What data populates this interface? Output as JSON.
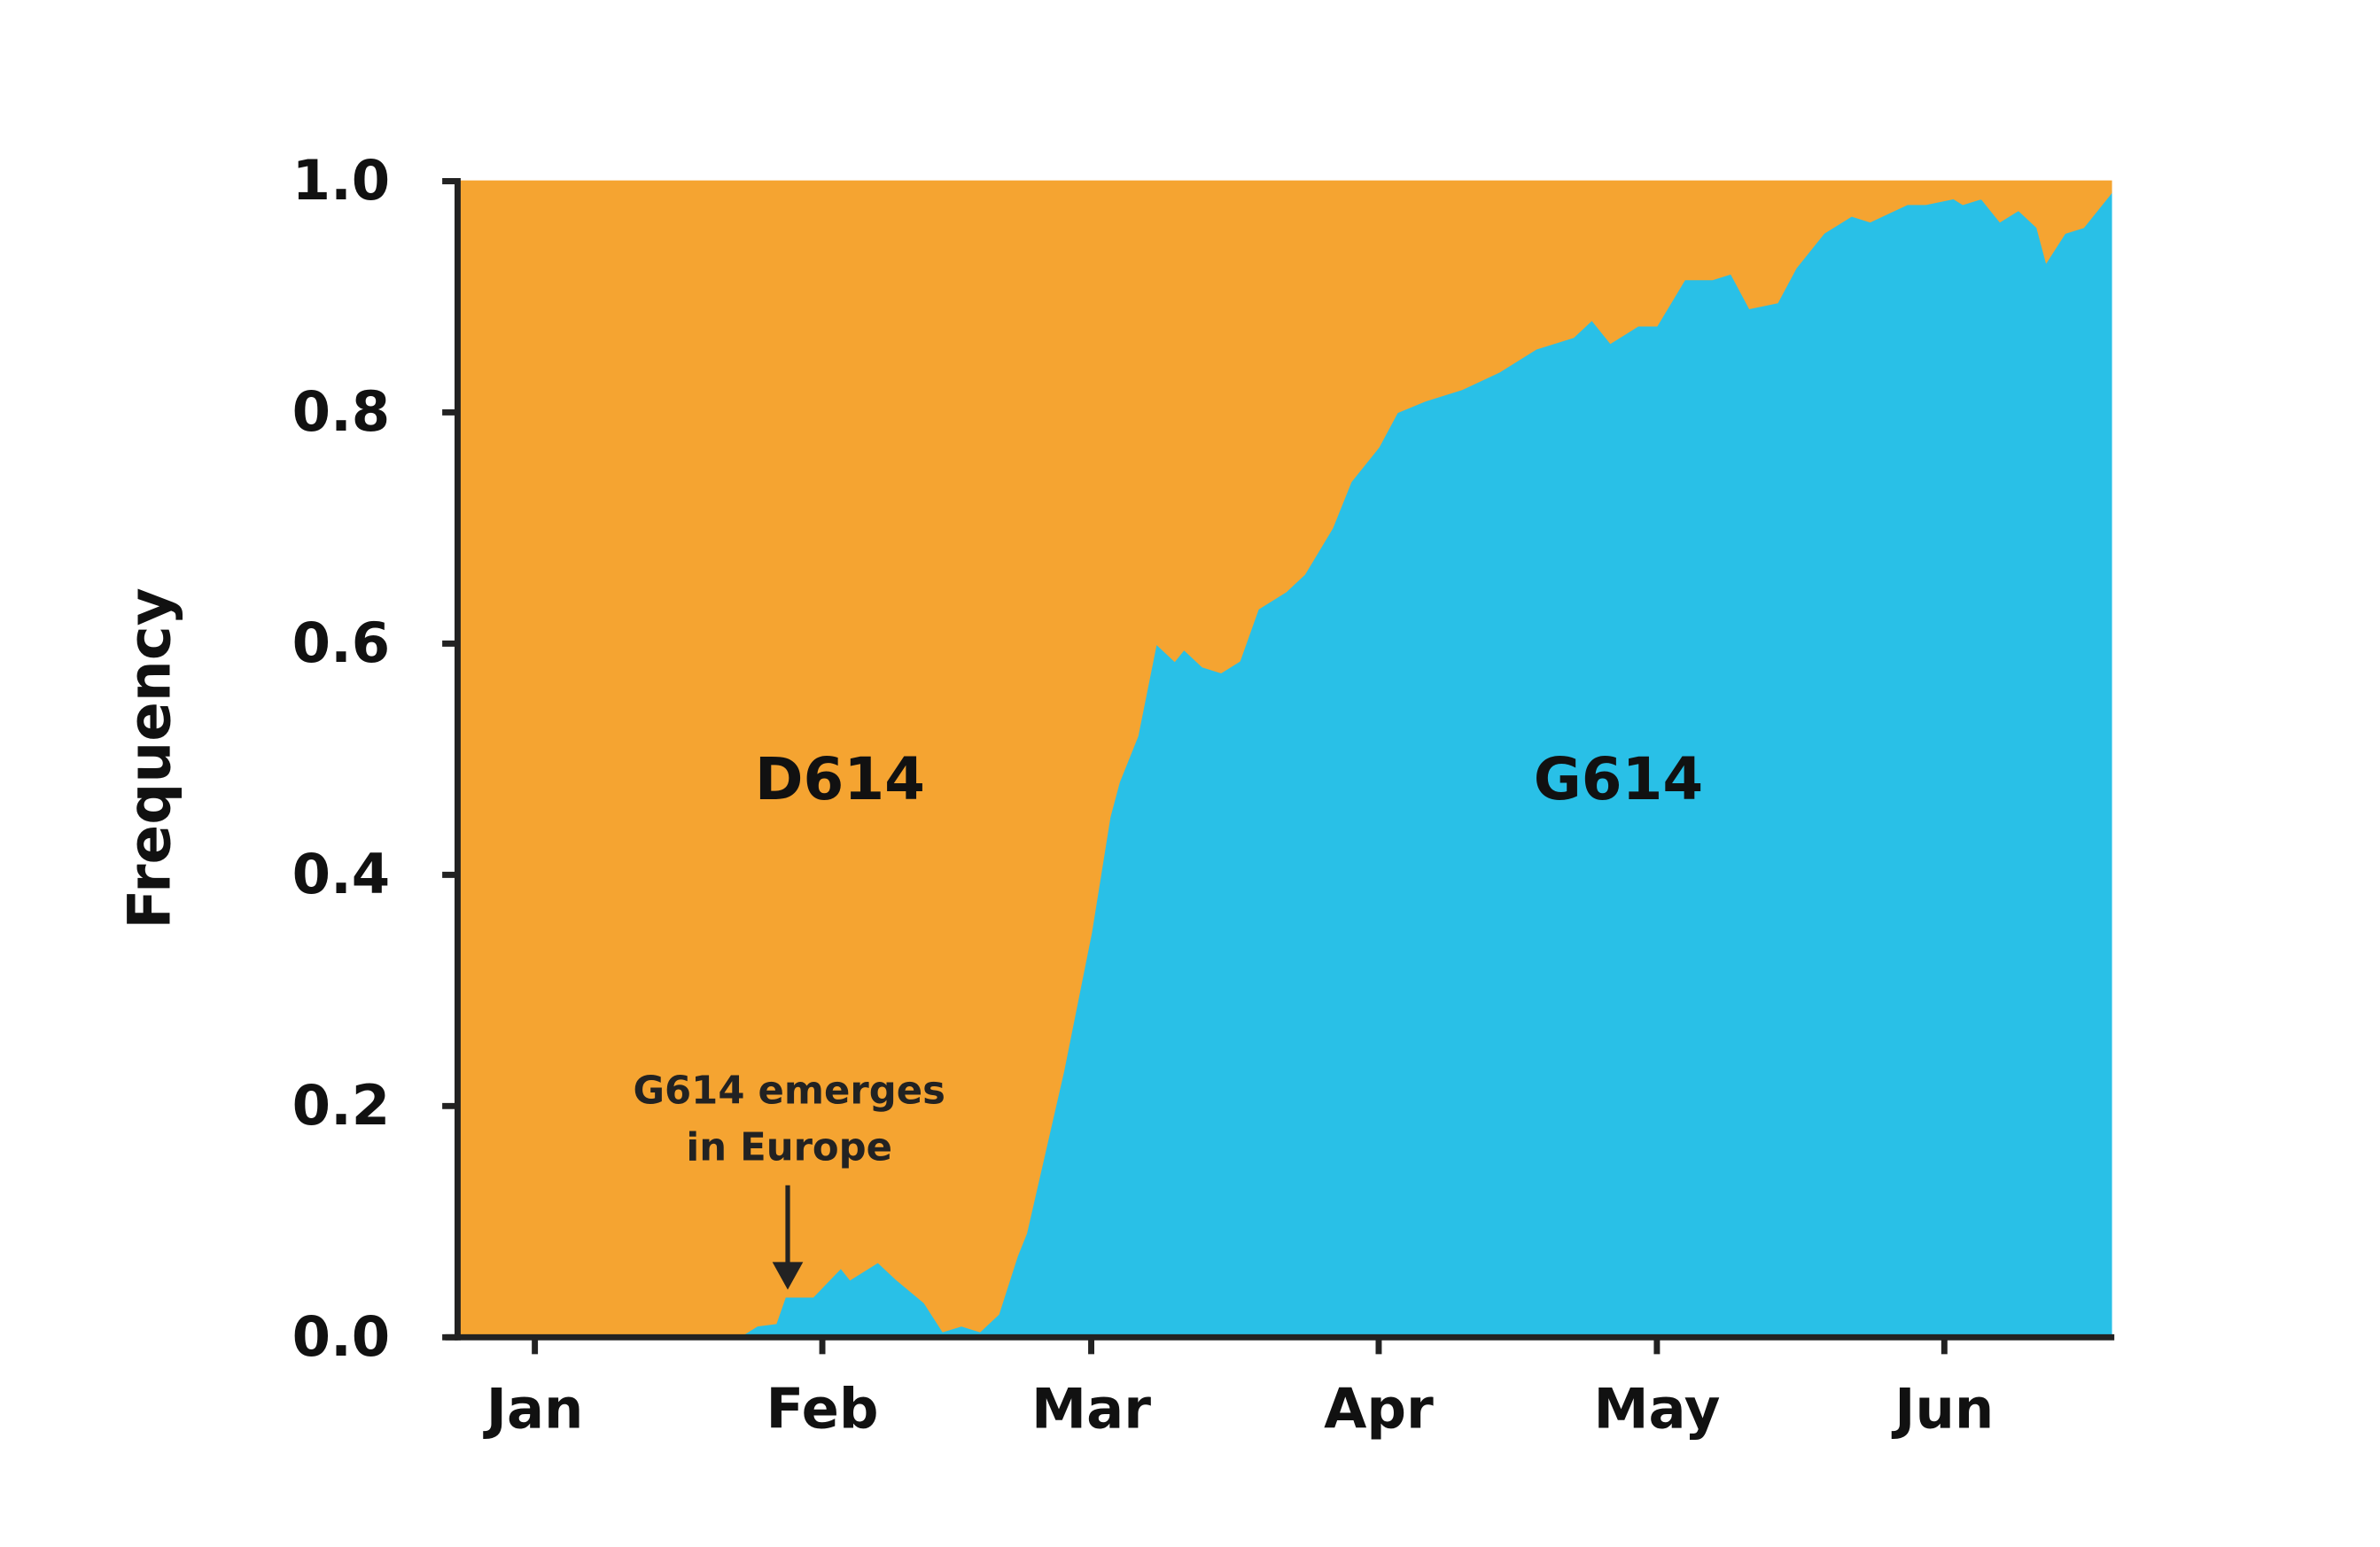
{
  "chart_data": {
    "type": "stacked_area",
    "y_label": "Frequency",
    "annotation": [
      "G614 emerges",
      "in Europe"
    ],
    "x": [
      -7,
      23,
      25,
      27,
      28,
      31,
      34,
      35,
      38,
      40,
      43,
      45,
      47,
      49,
      51,
      53,
      54,
      56,
      58,
      59,
      61,
      63,
      64,
      66,
      68,
      70,
      71,
      73,
      75,
      77,
      79,
      82,
      84,
      87,
      89,
      92,
      94,
      97,
      101,
      105,
      109,
      113,
      115,
      117,
      120,
      122,
      125,
      128,
      130,
      132,
      135,
      137,
      140,
      143,
      145,
      149,
      151,
      154,
      155,
      157,
      159,
      161,
      163,
      164,
      166,
      168,
      171
    ],
    "series": [
      {
        "name": "G614",
        "color": "#29c0e7",
        "values": [
          0,
          0,
          0.01,
          0.012,
          0.035,
          0.035,
          0.06,
          0.05,
          0.065,
          0.05,
          0.03,
          0.005,
          0.01,
          0.005,
          0.02,
          0.07,
          0.09,
          0.16,
          0.23,
          0.27,
          0.35,
          0.45,
          0.48,
          0.52,
          0.6,
          0.585,
          0.595,
          0.58,
          0.575,
          0.585,
          0.63,
          0.645,
          0.66,
          0.7,
          0.74,
          0.77,
          0.8,
          0.81,
          0.82,
          0.835,
          0.855,
          0.865,
          0.88,
          0.86,
          0.875,
          0.875,
          0.915,
          0.915,
          0.92,
          0.89,
          0.895,
          0.925,
          0.955,
          0.97,
          0.965,
          0.98,
          0.98,
          0.985,
          0.98,
          0.985,
          0.965,
          0.975,
          0.96,
          0.93,
          0.955,
          0.96,
          0.99
        ]
      },
      {
        "name": "D614",
        "color": "#f5a431",
        "values": [
          1,
          1,
          0.99,
          0.988,
          0.965,
          0.965,
          0.94,
          0.95,
          0.935,
          0.95,
          0.97,
          0.995,
          0.99,
          0.995,
          0.98,
          0.93,
          0.91,
          0.84,
          0.77,
          0.73,
          0.65,
          0.55,
          0.52,
          0.48,
          0.4,
          0.415,
          0.405,
          0.42,
          0.425,
          0.415,
          0.37,
          0.355,
          0.34,
          0.3,
          0.26,
          0.23,
          0.2,
          0.19,
          0.18,
          0.165,
          0.145,
          0.135,
          0.12,
          0.14,
          0.125,
          0.125,
          0.085,
          0.085,
          0.08,
          0.11,
          0.105,
          0.075,
          0.045,
          0.03,
          0.035,
          0.02,
          0.02,
          0.015,
          0.02,
          0.015,
          0.035,
          0.025,
          0.04,
          0.07,
          0.045,
          0.04,
          0.01
        ]
      }
    ],
    "xlim": [
      -7,
      171
    ],
    "xticks": [
      {
        "value": 1,
        "label": "Jan"
      },
      {
        "value": 32,
        "label": "Feb"
      },
      {
        "value": 61,
        "label": "Mar"
      },
      {
        "value": 92,
        "label": "Apr"
      },
      {
        "value": 122,
        "label": "May"
      },
      {
        "value": 153,
        "label": "Jun"
      }
    ],
    "ylim": [
      0,
      1
    ],
    "yticks": [
      {
        "value": 0,
        "label": "0.0"
      },
      0.2,
      0.4,
      0.6,
      0.8,
      {
        "value": 1,
        "label": "1.0"
      }
    ]
  }
}
